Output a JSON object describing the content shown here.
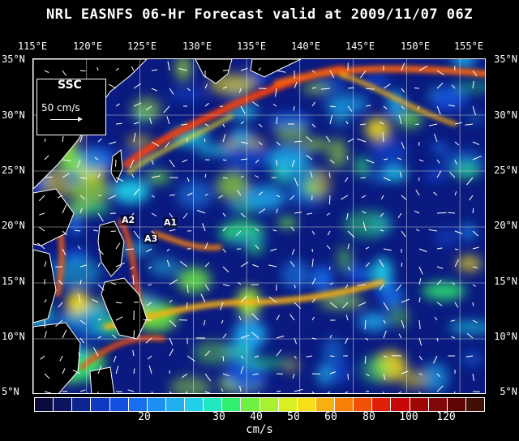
{
  "title": "NRL EASNFS  06-Hr Forecast valid at 2009/11/07 06Z",
  "lon_labels": [
    "115°E",
    "120°E",
    "125°E",
    "130°E",
    "135°E",
    "140°E",
    "145°E",
    "150°E",
    "155°E"
  ],
  "lat_labels": [
    "35°N",
    "30°N",
    "25°N",
    "20°N",
    "15°N",
    "10°N",
    "5°N"
  ],
  "legend_box": {
    "label": "SSC",
    "ref_vector": "50 cm/s"
  },
  "markers": [
    "A1",
    "A2",
    "A3"
  ],
  "colorbar": {
    "tick_labels": [
      "20",
      "30",
      "40",
      "50",
      "60",
      "80",
      "100",
      "120"
    ],
    "units": "cm/s",
    "colors": [
      "#0a0a3c",
      "#0c1460",
      "#0e2490",
      "#1038c0",
      "#1450e0",
      "#1870f0",
      "#1c90f4",
      "#20b0f0",
      "#20d0e8",
      "#20e8c0",
      "#30ee70",
      "#70f040",
      "#a8f030",
      "#d8f020",
      "#f8e018",
      "#f8b010",
      "#f88008",
      "#f05008",
      "#e02008",
      "#c80808",
      "#a00808",
      "#800808",
      "#600606",
      "#401004"
    ]
  }
}
